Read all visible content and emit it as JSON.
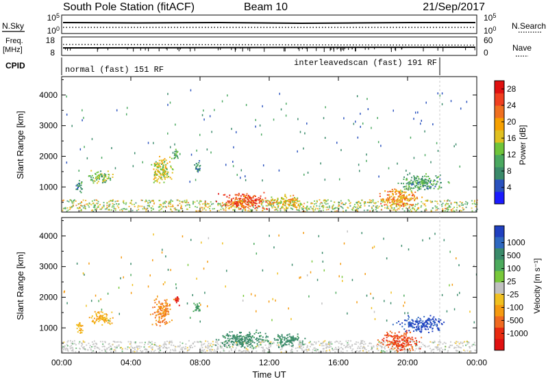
{
  "header": {
    "station": "South Pole Station (fitACF)",
    "beam": "Beam 10",
    "date": "21/Sep/2017"
  },
  "top_panels": {
    "nsky_label": "N.Sky",
    "nsearch_label": "N.Search",
    "nsky_ticks": [
      "10^5",
      "10^0"
    ],
    "nsearch_ticks": [
      "10^5",
      "10^0"
    ],
    "freq_label_line1": "Freq.",
    "freq_label_line2": "[MHz]",
    "freq_ticks": [
      "18",
      "8"
    ],
    "nave_label": "Nave",
    "nave_ticks": [
      "60",
      "0"
    ],
    "cpid_label": "CPID",
    "cpid_segments": [
      {
        "label": "normal (fast) 151 RF",
        "start_hour": 0,
        "end_hour": 22
      },
      {
        "label": "interleavedscan (fast) 191 RF",
        "start_hour": 22,
        "end_hour": 24
      }
    ]
  },
  "x_axis": {
    "label": "Time UT",
    "ticks": [
      "00:00",
      "04:00",
      "08:00",
      "12:00",
      "16:00",
      "20:00",
      "00:00"
    ]
  },
  "power_panel": {
    "ylabel": "Slant Range [km]",
    "yticks": [
      "1000",
      "2000",
      "3000",
      "4000"
    ],
    "colorbar_label": "Power [dB]",
    "colorbar_ticks": [
      "4",
      "8",
      "12",
      "16",
      "20",
      "24",
      "28"
    ],
    "colors": [
      "#1a1aff",
      "#2a52be",
      "#3a8a6a",
      "#4aa860",
      "#6fc43a",
      "#e0c020",
      "#f6a000",
      "#f07020",
      "#f04020",
      "#e01010"
    ]
  },
  "velocity_panel": {
    "ylabel": "Slant Range [km]",
    "yticks": [
      "1000",
      "2000",
      "3000",
      "4000"
    ],
    "colorbar_label": "Velocity [m s⁻¹]",
    "colorbar_ticks": [
      "1000",
      "500",
      "100",
      "25",
      "-25",
      "-100",
      "-500",
      "-1000"
    ],
    "colors": [
      "#2040c0",
      "#2e68c0",
      "#3a8a6a",
      "#4caa5c",
      "#78c83a",
      "#c0c0c0",
      "#f0c020",
      "#f59a10",
      "#f06a20",
      "#e82a10",
      "#e01010"
    ]
  },
  "chart_data": [
    {
      "type": "heatmap",
      "title": "Power",
      "xlabel": "Time UT",
      "ylabel": "Slant Range [km]",
      "xlim": [
        0,
        24
      ],
      "ylim": [
        180,
        4600
      ],
      "clim": [
        0,
        30
      ],
      "colorbar_label": "Power [dB]",
      "blobs": [
        {
          "t": 1.0,
          "r": 1050,
          "dt": 0.3,
          "dr": 250,
          "v": 10
        },
        {
          "t": 2.2,
          "r": 1350,
          "dt": 0.9,
          "dr": 250,
          "v": 12
        },
        {
          "t": 5.8,
          "r": 1550,
          "dt": 0.8,
          "dr": 500,
          "v": 16
        },
        {
          "t": 6.6,
          "r": 2050,
          "dt": 0.2,
          "dr": 250,
          "v": 10
        },
        {
          "t": 7.8,
          "r": 1700,
          "dt": 0.3,
          "dr": 250,
          "v": 8
        },
        {
          "t": 10.5,
          "r": 550,
          "dt": 2.0,
          "dr": 300,
          "v": 24
        },
        {
          "t": 13.0,
          "r": 550,
          "dt": 1.2,
          "dr": 250,
          "v": 18
        },
        {
          "t": 19.5,
          "r": 650,
          "dt": 1.6,
          "dr": 350,
          "v": 20
        },
        {
          "t": 20.8,
          "r": 1150,
          "dt": 1.8,
          "dr": 300,
          "v": 10
        }
      ]
    },
    {
      "type": "heatmap",
      "title": "Velocity",
      "xlabel": "Time UT",
      "ylabel": "Slant Range [km]",
      "xlim": [
        0,
        24
      ],
      "ylim": [
        180,
        4600
      ],
      "clim": [
        -1000,
        1000
      ],
      "colorbar_label": "Velocity [m s⁻¹]",
      "blobs": [
        {
          "t": 1.0,
          "r": 1050,
          "dt": 0.3,
          "dr": 250,
          "v": -100
        },
        {
          "t": 2.2,
          "r": 1350,
          "dt": 0.9,
          "dr": 250,
          "v": -100
        },
        {
          "t": 5.8,
          "r": 1550,
          "dt": 0.8,
          "dr": 500,
          "v": -300
        },
        {
          "t": 6.6,
          "r": 1950,
          "dt": 0.2,
          "dr": 250,
          "v": -800
        },
        {
          "t": 7.8,
          "r": 1700,
          "dt": 0.3,
          "dr": 250,
          "v": 100
        },
        {
          "t": 10.5,
          "r": 650,
          "dt": 2.0,
          "dr": 300,
          "v": 150
        },
        {
          "t": 13.0,
          "r": 600,
          "dt": 1.2,
          "dr": 250,
          "v": 150
        },
        {
          "t": 19.5,
          "r": 600,
          "dt": 1.6,
          "dr": 350,
          "v": -500
        },
        {
          "t": 20.8,
          "r": 1150,
          "dt": 1.8,
          "dr": 300,
          "v": 600
        }
      ]
    }
  ]
}
